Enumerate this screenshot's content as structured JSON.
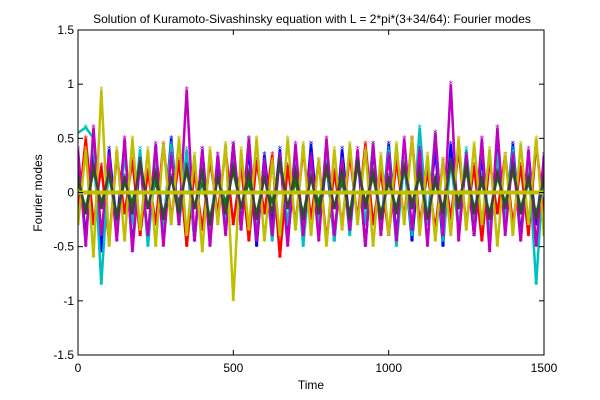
{
  "chart_data": {
    "type": "line",
    "title": "Solution of Kuramoto-Sivashinsky equation with L = 2*pi*(3+34/64): Fourier modes",
    "xlabel": "Time",
    "ylabel": "Fourier modes",
    "xlim": [
      0,
      1500
    ],
    "ylim": [
      -1.5,
      1.5
    ],
    "xticks": [
      0,
      500,
      1000,
      1500
    ],
    "xtick_labels": [
      "0",
      "500",
      "1000",
      "1500"
    ],
    "yticks": [
      -1.5,
      -1,
      -0.5,
      0,
      0.5,
      1,
      1.5
    ],
    "ytick_labels": [
      "-1.5",
      "-1",
      "-0.5",
      "0",
      "0.5",
      "1",
      "1.5"
    ],
    "grid": false,
    "legend": "none",
    "marker": "star",
    "series_colors": [
      "#0000ff",
      "#008000",
      "#ff0000",
      "#00bfbf",
      "#bf00bf",
      "#bfbf00",
      "#404040"
    ],
    "series": [
      {
        "color": "#0000ff",
        "x": [
          0,
          25,
          50,
          75,
          100,
          125,
          150,
          175,
          200,
          225,
          250,
          275,
          300,
          325,
          350,
          375,
          400,
          425,
          450,
          475,
          500,
          525,
          550,
          575,
          600,
          625,
          650,
          675,
          700,
          725,
          750,
          775,
          800,
          825,
          850,
          875,
          900,
          925,
          950,
          975,
          1000,
          1025,
          1050,
          1075,
          1100,
          1125,
          1150,
          1175,
          1200,
          1225,
          1250,
          1275,
          1300,
          1325,
          1350,
          1375,
          1400,
          1425,
          1450,
          1475,
          1500
        ],
        "y": [
          0.3,
          -0.4,
          0.35,
          -0.55,
          0.4,
          -0.3,
          0.45,
          -0.5,
          0.3,
          -0.45,
          0.4,
          -0.35,
          0.5,
          -0.3,
          0.35,
          -0.45,
          0.4,
          -0.4,
          0.3,
          -0.35,
          0.45,
          -0.3,
          0.4,
          -0.5,
          0.35,
          -0.3,
          0.4,
          -0.45,
          0.3,
          -0.4,
          0.45,
          -0.35,
          0.3,
          -0.45,
          0.4,
          -0.3,
          0.35,
          -0.5,
          0.4,
          -0.35,
          0.45,
          -0.4,
          0.3,
          -0.45,
          0.35,
          -0.3,
          0.4,
          -0.5,
          0.45,
          -0.35,
          0.3,
          -0.4,
          0.35,
          -0.45,
          0.4,
          -0.3,
          0.45,
          -0.4,
          0.35,
          -0.3,
          0.3
        ]
      },
      {
        "color": "#008000",
        "x": [
          0,
          25,
          50,
          75,
          100,
          125,
          150,
          175,
          200,
          225,
          250,
          275,
          300,
          325,
          350,
          375,
          400,
          425,
          450,
          475,
          500,
          525,
          550,
          575,
          600,
          625,
          650,
          675,
          700,
          725,
          750,
          775,
          800,
          825,
          850,
          875,
          900,
          925,
          950,
          975,
          1000,
          1025,
          1050,
          1075,
          1100,
          1125,
          1150,
          1175,
          1200,
          1225,
          1250,
          1275,
          1300,
          1325,
          1350,
          1375,
          1400,
          1425,
          1450,
          1475,
          1500
        ],
        "y": [
          0.1,
          -0.15,
          0.2,
          -0.1,
          0.15,
          -0.2,
          0.1,
          -0.1,
          0.25,
          -0.15,
          0.1,
          -0.2,
          0.15,
          -0.1,
          0.2,
          -0.15,
          0.1,
          -0.25,
          0.15,
          -0.1,
          0.2,
          -0.15,
          0.1,
          -0.2,
          0.15,
          -0.1,
          0.25,
          -0.15,
          0.1,
          -0.2,
          0.15,
          -0.1,
          0.2,
          -0.15,
          0.1,
          -0.2,
          0.25,
          -0.1,
          0.15,
          -0.2,
          0.1,
          -0.15,
          0.2,
          -0.1,
          0.15,
          -0.2,
          0.1,
          -0.15,
          0.25,
          -0.1,
          0.2,
          -0.15,
          0.1,
          -0.2,
          0.15,
          -0.1,
          0.2,
          -0.15,
          0.1,
          -0.2,
          0.1
        ]
      },
      {
        "color": "#ff0000",
        "x": [
          0,
          25,
          50,
          75,
          100,
          125,
          150,
          175,
          200,
          225,
          250,
          275,
          300,
          325,
          350,
          375,
          400,
          425,
          450,
          475,
          500,
          525,
          550,
          575,
          600,
          625,
          650,
          675,
          700,
          725,
          750,
          775,
          800,
          825,
          850,
          875,
          900,
          925,
          950,
          975,
          1000,
          1025,
          1050,
          1075,
          1100,
          1125,
          1150,
          1175,
          1200,
          1225,
          1250,
          1275,
          1300,
          1325,
          1350,
          1375,
          1400,
          1425,
          1450,
          1475,
          1500
        ],
        "y": [
          -0.2,
          0.5,
          -0.3,
          0.25,
          -0.45,
          0.35,
          -0.2,
          0.3,
          -0.4,
          0.2,
          -0.3,
          0.45,
          -0.25,
          0.3,
          -0.5,
          0.2,
          -0.35,
          0.3,
          -0.2,
          0.4,
          -0.3,
          0.25,
          -0.45,
          0.3,
          -0.2,
          0.35,
          -0.6,
          0.25,
          -0.3,
          0.4,
          -0.25,
          0.3,
          -0.45,
          0.2,
          -0.3,
          0.35,
          -0.25,
          0.45,
          -0.3,
          0.2,
          -0.4,
          0.3,
          -0.25,
          0.5,
          -0.3,
          0.2,
          -0.35,
          0.3,
          -0.25,
          0.4,
          -0.3,
          0.25,
          -0.45,
          0.3,
          -0.2,
          0.35,
          -0.3,
          0.25,
          -0.4,
          0.45,
          -0.2
        ]
      },
      {
        "color": "#00bfbf",
        "x": [
          0,
          25,
          50,
          75,
          100,
          125,
          150,
          175,
          200,
          225,
          250,
          275,
          300,
          325,
          350,
          375,
          400,
          425,
          450,
          475,
          500,
          525,
          550,
          575,
          600,
          625,
          650,
          675,
          700,
          725,
          750,
          775,
          800,
          825,
          850,
          875,
          900,
          925,
          950,
          975,
          1000,
          1025,
          1050,
          1075,
          1100,
          1125,
          1150,
          1175,
          1200,
          1225,
          1250,
          1275,
          1300,
          1325,
          1350,
          1375,
          1400,
          1425,
          1450,
          1475,
          1500
        ],
        "y": [
          0.55,
          0.6,
          0.5,
          -0.85,
          0.3,
          -0.4,
          0.35,
          -0.3,
          0.4,
          -0.5,
          0.3,
          -0.35,
          0.45,
          -0.3,
          0.4,
          -0.45,
          0.3,
          -0.4,
          0.35,
          -0.3,
          0.4,
          -0.35,
          0.5,
          -0.4,
          0.3,
          -0.45,
          0.35,
          -0.3,
          0.4,
          -0.5,
          0.3,
          -0.35,
          0.4,
          -0.45,
          0.3,
          -0.4,
          0.35,
          -0.3,
          0.45,
          -0.35,
          0.4,
          -0.5,
          0.3,
          -0.4,
          0.6,
          -0.3,
          0.55,
          -0.45,
          0.3,
          -0.35,
          0.4,
          -0.3,
          0.45,
          -0.4,
          0.35,
          -0.3,
          0.4,
          -0.45,
          0.3,
          -0.85,
          0.3
        ]
      },
      {
        "color": "#bf00bf",
        "x": [
          0,
          25,
          50,
          75,
          100,
          125,
          150,
          175,
          200,
          225,
          250,
          275,
          300,
          325,
          350,
          375,
          400,
          425,
          450,
          475,
          500,
          525,
          550,
          575,
          600,
          625,
          650,
          675,
          700,
          725,
          750,
          775,
          800,
          825,
          850,
          875,
          900,
          925,
          950,
          975,
          1000,
          1025,
          1050,
          1075,
          1100,
          1125,
          1150,
          1175,
          1200,
          1225,
          1250,
          1275,
          1300,
          1325,
          1350,
          1375,
          1400,
          1425,
          1450,
          1475,
          1500
        ],
        "y": [
          0.4,
          -0.5,
          0.6,
          -0.4,
          0.35,
          -0.45,
          0.5,
          -0.55,
          0.3,
          -0.4,
          0.45,
          -0.5,
          0.35,
          -0.3,
          0.95,
          -0.45,
          0.4,
          -0.5,
          0.35,
          -0.4,
          0.45,
          -0.35,
          0.5,
          -0.45,
          0.3,
          -0.4,
          0.35,
          -0.5,
          0.45,
          -0.4,
          0.35,
          -0.45,
          0.5,
          -0.4,
          0.3,
          -0.35,
          0.4,
          -0.5,
          0.45,
          -0.4,
          0.35,
          -0.45,
          0.5,
          -0.35,
          0.4,
          -0.5,
          0.55,
          -0.4,
          1.0,
          -0.45,
          0.35,
          -0.4,
          0.5,
          -0.55,
          0.6,
          -0.4,
          0.35,
          -0.45,
          0.4,
          -0.5,
          0.35
        ]
      },
      {
        "color": "#bfbf00",
        "x": [
          0,
          25,
          50,
          75,
          100,
          125,
          150,
          175,
          200,
          225,
          250,
          275,
          300,
          325,
          350,
          375,
          400,
          425,
          450,
          475,
          500,
          525,
          550,
          575,
          600,
          625,
          650,
          675,
          700,
          725,
          750,
          775,
          800,
          825,
          850,
          875,
          900,
          925,
          950,
          975,
          1000,
          1025,
          1050,
          1075,
          1100,
          1125,
          1150,
          1175,
          1200,
          1225,
          1250,
          1275,
          1300,
          1325,
          1350,
          1375,
          1400,
          1425,
          1450,
          1475,
          1500
        ],
        "y": [
          -0.3,
          0.4,
          -0.6,
          0.95,
          -0.5,
          0.4,
          -0.45,
          0.5,
          -0.35,
          0.4,
          -0.5,
          0.45,
          -0.3,
          0.5,
          -0.4,
          0.35,
          -0.55,
          0.4,
          -0.3,
          0.45,
          -1.0,
          0.4,
          -0.35,
          0.5,
          -0.45,
          0.3,
          -0.4,
          0.5,
          -0.35,
          0.45,
          -0.4,
          0.3,
          -0.5,
          0.4,
          -0.35,
          0.45,
          -0.3,
          0.4,
          -0.5,
          0.35,
          -0.4,
          0.45,
          -0.3,
          0.5,
          -0.4,
          0.35,
          -0.45,
          0.3,
          -0.4,
          0.5,
          -0.35,
          0.45,
          -0.3,
          0.4,
          -0.5,
          0.35,
          -0.4,
          0.45,
          -0.3,
          0.5,
          -0.4
        ]
      },
      {
        "color": "#404040",
        "x": [
          0,
          25,
          50,
          75,
          100,
          125,
          150,
          175,
          200,
          225,
          250,
          275,
          300,
          325,
          350,
          375,
          400,
          425,
          450,
          475,
          500,
          525,
          550,
          575,
          600,
          625,
          650,
          675,
          700,
          725,
          750,
          775,
          800,
          825,
          850,
          875,
          900,
          925,
          950,
          975,
          1000,
          1025,
          1050,
          1075,
          1100,
          1125,
          1150,
          1175,
          1200,
          1225,
          1250,
          1275,
          1300,
          1325,
          1350,
          1375,
          1400,
          1425,
          1450,
          1475,
          1500
        ],
        "y": [
          0.15,
          -0.2,
          0.25,
          -0.15,
          0.2,
          -0.25,
          0.15,
          -0.2,
          0.3,
          -0.15,
          0.2,
          -0.25,
          0.15,
          -0.2,
          0.25,
          -0.15,
          0.2,
          -0.3,
          0.15,
          -0.2,
          0.25,
          -0.15,
          0.2,
          -0.25,
          0.15,
          -0.2,
          0.3,
          -0.15,
          0.2,
          -0.25,
          0.15,
          -0.2,
          0.25,
          -0.15,
          0.2,
          -0.25,
          0.3,
          -0.15,
          0.2,
          -0.25,
          0.15,
          -0.2,
          0.25,
          -0.15,
          0.2,
          -0.25,
          0.15,
          -0.2,
          0.3,
          -0.15,
          0.25,
          -0.2,
          0.15,
          -0.25,
          0.2,
          -0.15,
          0.25,
          -0.2,
          0.15,
          -0.25,
          0.15
        ]
      },
      {
        "color": "#bfbf00",
        "x": [
          0,
          250,
          500,
          750,
          1000,
          1250,
          1500
        ],
        "y": [
          0,
          0,
          0,
          0,
          0,
          0,
          0
        ]
      }
    ]
  }
}
